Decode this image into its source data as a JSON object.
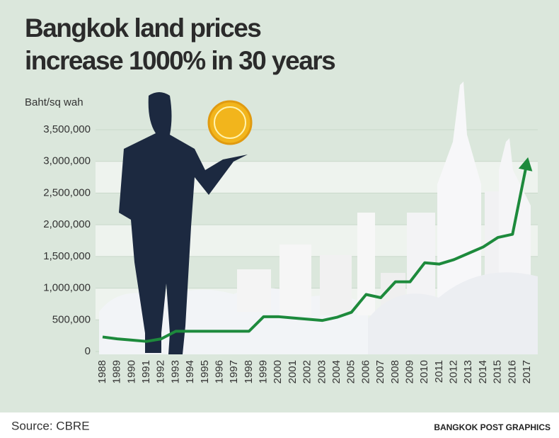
{
  "chart_data": {
    "type": "line",
    "title": [
      "Bangkok land prices",
      "increase 1000% in 30 years"
    ],
    "y_label": "Baht/sq wah",
    "source": "Source: CBRE",
    "credit": "BANGKOK POST GRAPHICS",
    "categories": [
      "1988",
      "1989",
      "1990",
      "1991",
      "1992",
      "1993",
      "1994",
      "1995",
      "1996",
      "1997",
      "1998",
      "1999",
      "2000",
      "2001",
      "2002",
      "2003",
      "2004",
      "2005",
      "2006",
      "2007",
      "2008",
      "2009",
      "2010",
      "2011",
      "2012",
      "2013",
      "2014",
      "2015",
      "2016",
      "2017"
    ],
    "series": [
      {
        "name": "Land price",
        "color": "#1d8a3c",
        "values": [
          230000,
          200000,
          180000,
          160000,
          200000,
          320000,
          320000,
          320000,
          320000,
          320000,
          320000,
          550000,
          550000,
          530000,
          510000,
          490000,
          540000,
          620000,
          900000,
          850000,
          1100000,
          1100000,
          1400000,
          1380000,
          1450000,
          1550000,
          1650000,
          1800000,
          1850000,
          3000000
        ]
      }
    ],
    "ylim": [
      0,
      3500000
    ],
    "yticks": [
      0,
      {
        "value": 500000,
        "label": "500,000"
      },
      {
        "value": 1000000,
        "label": "1,000,000"
      },
      {
        "value": 1500000,
        "label": "1,500,000"
      },
      {
        "value": 2000000,
        "label": "2,000,000"
      },
      {
        "value": 2500000,
        "label": "2,500,000"
      },
      {
        "value": 3000000,
        "label": "3,000,000"
      },
      {
        "value": 3500000,
        "label": "3,500,000"
      }
    ]
  }
}
